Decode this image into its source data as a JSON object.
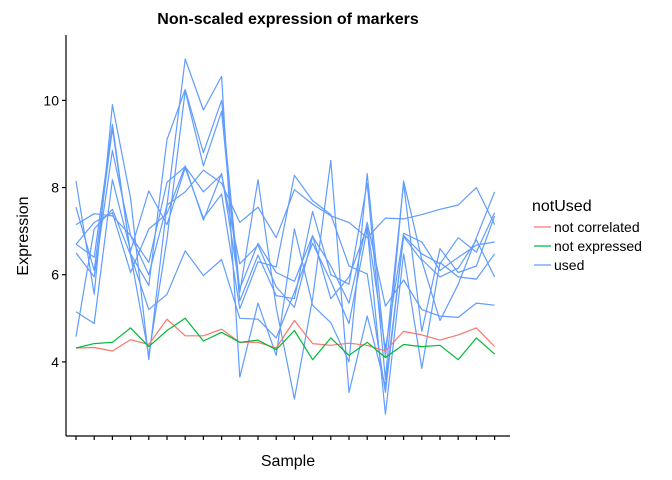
{
  "chart_data": {
    "type": "line",
    "title": "Non-scaled expression of markers",
    "xlabel": "Sample",
    "ylabel": "Expression",
    "ylim": [
      2.3,
      11.5
    ],
    "yticks": [
      4,
      6,
      8,
      10
    ],
    "x": [
      1,
      2,
      3,
      4,
      5,
      6,
      7,
      8,
      9,
      10,
      11,
      12,
      13,
      14,
      15,
      16,
      17,
      18,
      19,
      20,
      21,
      22,
      23,
      24
    ],
    "grid": false,
    "legend": {
      "title": "notUsed",
      "position": "right",
      "entries": [
        {
          "label": "not correlated",
          "color": "#F8766D"
        },
        {
          "label": "not expressed",
          "color": "#00BA38"
        },
        {
          "label": "used",
          "color": "#619CFF"
        }
      ]
    },
    "series": [
      {
        "group": "not correlated",
        "color": "#F8766D",
        "values": [
          4.32,
          4.33,
          4.25,
          4.51,
          4.4,
          4.98,
          4.6,
          4.6,
          4.75,
          4.45,
          4.45,
          4.32,
          4.95,
          4.42,
          4.38,
          4.43,
          4.38,
          4.25,
          4.7,
          4.62,
          4.5,
          4.62,
          4.78,
          4.35
        ]
      },
      {
        "group": "not expressed",
        "color": "#00BA38",
        "values": [
          4.32,
          4.42,
          4.45,
          4.78,
          4.35,
          4.72,
          5.0,
          4.48,
          4.68,
          4.45,
          4.5,
          4.28,
          4.72,
          4.05,
          4.55,
          4.15,
          4.45,
          4.1,
          4.4,
          4.35,
          4.38,
          4.05,
          4.55,
          4.18
        ]
      },
      {
        "group": "used",
        "color": "#619CFF",
        "values": [
          8.15,
          5.55,
          9.9,
          7.75,
          4.05,
          7.6,
          10.95,
          9.78,
          10.55,
          3.65,
          5.35,
          4.15,
          7.05,
          5.3,
          4.9,
          4.0,
          8.32,
          4.12,
          8.1,
          4.7,
          6.6,
          6.05,
          6.2,
          7.35
        ]
      },
      {
        "group": "used",
        "color": "#619CFF",
        "values": [
          7.55,
          6.1,
          9.35,
          6.48,
          5.75,
          9.1,
          10.25,
          8.8,
          10.0,
          5.6,
          8.18,
          5.25,
          3.15,
          5.45,
          8.62,
          3.3,
          5.05,
          3.45,
          6.88,
          6.32,
          4.95,
          5.78,
          6.85,
          7.9
        ]
      },
      {
        "group": "used",
        "color": "#619CFF",
        "values": [
          7.15,
          7.4,
          7.35,
          6.9,
          6.0,
          7.6,
          7.9,
          8.4,
          8.1,
          7.2,
          7.55,
          6.85,
          7.95,
          7.62,
          7.35,
          7.2,
          6.85,
          7.3,
          7.28,
          7.38,
          7.5,
          7.6,
          8.0,
          7.15
        ]
      },
      {
        "group": "used",
        "color": "#619CFF",
        "values": [
          5.15,
          4.88,
          8.18,
          6.55,
          7.92,
          7.15,
          8.45,
          7.3,
          7.85,
          5.22,
          6.3,
          6.18,
          8.28,
          7.7,
          7.38,
          6.2,
          6.02,
          3.3,
          6.9,
          6.48,
          6.25,
          6.85,
          6.52,
          7.42
        ]
      },
      {
        "group": "used",
        "color": "#619CFF",
        "values": [
          6.7,
          6.4,
          9.45,
          6.45,
          4.15,
          6.82,
          10.22,
          8.5,
          9.75,
          5.4,
          6.45,
          5.52,
          5.45,
          7.45,
          6.0,
          5.78,
          8.1,
          3.6,
          8.15,
          6.35,
          5.95,
          6.15,
          6.8,
          5.95
        ]
      },
      {
        "group": "used",
        "color": "#619CFF",
        "values": [
          4.58,
          7.05,
          7.5,
          6.45,
          5.2,
          5.55,
          6.55,
          5.98,
          6.35,
          5.0,
          4.98,
          4.55,
          5.6,
          6.72,
          5.85,
          4.88,
          7.05,
          2.8,
          6.48,
          3.85,
          6.28,
          5.95,
          5.9,
          6.48
        ]
      },
      {
        "group": "used",
        "color": "#619CFF",
        "values": [
          6.5,
          5.95,
          8.85,
          6.9,
          6.28,
          8.12,
          8.48,
          7.9,
          8.3,
          6.25,
          6.68,
          5.72,
          5.25,
          6.88,
          6.2,
          5.35,
          7.2,
          5.28,
          5.88,
          5.2,
          5.05,
          5.02,
          5.35,
          5.3
        ]
      },
      {
        "group": "used",
        "color": "#619CFF",
        "values": [
          6.7,
          7.2,
          7.42,
          6.05,
          7.05,
          7.4,
          8.5,
          7.25,
          8.32,
          5.68,
          6.72,
          6.05,
          5.85,
          6.9,
          5.45,
          5.95,
          7.1,
          4.3,
          6.95,
          6.75,
          6.1,
          6.4,
          6.68,
          6.75
        ]
      }
    ]
  }
}
